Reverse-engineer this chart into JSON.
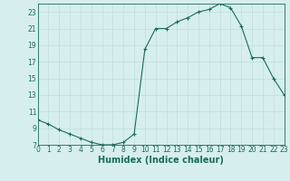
{
  "title": "",
  "xlabel": "Humidex (Indice chaleur)",
  "background_color": "#d6eeee",
  "line_color": "#1a6b5a",
  "marker": "+",
  "x_values": [
    0,
    1,
    2,
    3,
    4,
    5,
    6,
    7,
    8,
    9,
    10,
    11,
    12,
    13,
    14,
    15,
    16,
    17,
    18,
    19,
    20,
    21,
    22,
    23
  ],
  "y_values": [
    10.0,
    9.5,
    8.8,
    8.3,
    7.8,
    7.3,
    7.0,
    7.0,
    7.3,
    8.3,
    18.5,
    21.0,
    21.0,
    21.8,
    22.3,
    23.0,
    23.3,
    24.0,
    23.5,
    21.3,
    17.5,
    17.5,
    15.0,
    13.0
  ],
  "ylim": [
    7,
    24
  ],
  "xlim": [
    0,
    23
  ],
  "yticks": [
    7,
    9,
    11,
    13,
    15,
    17,
    19,
    21,
    23
  ],
  "xticks": [
    0,
    1,
    2,
    3,
    4,
    5,
    6,
    7,
    8,
    9,
    10,
    11,
    12,
    13,
    14,
    15,
    16,
    17,
    18,
    19,
    20,
    21,
    22,
    23
  ],
  "grid_color": "#c0dede",
  "font_color": "#1a6b5a",
  "tick_fontsize": 5.5,
  "xlabel_fontsize": 7
}
